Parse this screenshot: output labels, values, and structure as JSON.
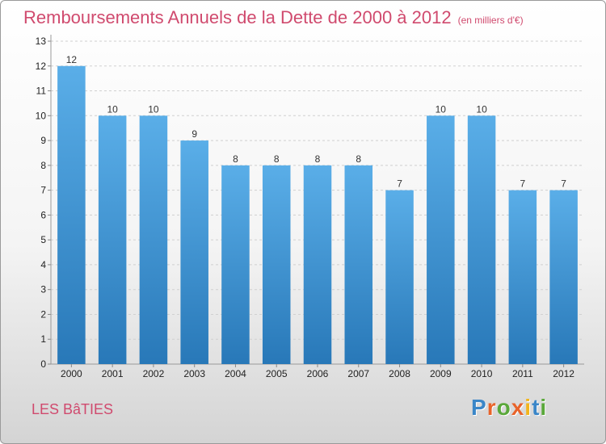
{
  "chart_data": {
    "type": "bar",
    "title": "Remboursements Annuels de la Dette de 2000 à 2012",
    "unit_label": "(en milliers d'€)",
    "categories": [
      "2000",
      "2001",
      "2002",
      "2003",
      "2004",
      "2005",
      "2006",
      "2007",
      "2008",
      "2009",
      "2010",
      "2011",
      "2012"
    ],
    "values": [
      12,
      10,
      10,
      9,
      8,
      8,
      8,
      8,
      7,
      10,
      10,
      7,
      7
    ],
    "ylim": [
      0,
      13
    ],
    "yticks": [
      "0",
      "1",
      "2",
      "3",
      "4",
      "5",
      "6",
      "7",
      "8",
      "9",
      "10",
      "11",
      "12",
      "13"
    ],
    "grid": true,
    "colors": {
      "bar_top": "#5aaee8",
      "bar_bottom": "#2878b8",
      "title": "#d04a6e"
    }
  },
  "commune": "LES BâTIES",
  "logo": {
    "text": "Proxiti",
    "letter_colors": [
      "#3a86c8",
      "#e8632a",
      "#5aa83a",
      "#e8632a",
      "#f2b51c",
      "#3a86c8",
      "#5aa83a"
    ]
  }
}
